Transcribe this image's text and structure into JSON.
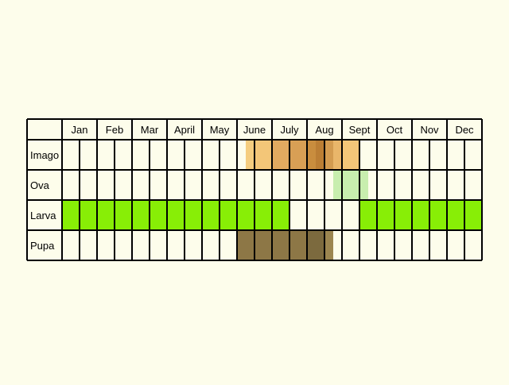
{
  "chart_data": {
    "type": "table",
    "title": "",
    "months": [
      "Jan",
      "Feb",
      "Mar",
      "April",
      "May",
      "June",
      "July",
      "Aug",
      "Sept",
      "Oct",
      "Nov",
      "Dec"
    ],
    "stages": [
      {
        "key": "imago",
        "label": "Imago",
        "spans": [
          {
            "start": 5.25,
            "end": 5.5,
            "color": "#f5cd7f"
          },
          {
            "start": 5.5,
            "end": 6.0,
            "color": "#f3c678"
          },
          {
            "start": 6.0,
            "end": 6.5,
            "color": "#e2aa60"
          },
          {
            "start": 6.5,
            "end": 7.0,
            "color": "#d89f55"
          },
          {
            "start": 7.0,
            "end": 7.25,
            "color": "#c98d3e"
          },
          {
            "start": 7.25,
            "end": 7.5,
            "color": "#bb7e34"
          },
          {
            "start": 7.5,
            "end": 7.75,
            "color": "#d39b50"
          },
          {
            "start": 7.75,
            "end": 8.0,
            "color": "#e9b66a"
          },
          {
            "start": 8.0,
            "end": 8.5,
            "color": "#f3c678"
          }
        ]
      },
      {
        "key": "ova",
        "label": "Ova",
        "spans": [
          {
            "start": 7.75,
            "end": 8.75,
            "color": "#c8eeae"
          }
        ]
      },
      {
        "key": "larva",
        "label": "Larva",
        "spans": [
          {
            "start": 0.0,
            "end": 6.5,
            "color": "#88ee06"
          },
          {
            "start": 8.5,
            "end": 12.0,
            "color": "#88ee06"
          }
        ]
      },
      {
        "key": "pupa",
        "label": "Pupa",
        "spans": [
          {
            "start": 5.0,
            "end": 7.0,
            "color": "#8d7746"
          },
          {
            "start": 7.0,
            "end": 7.5,
            "color": "#7c6a3e"
          },
          {
            "start": 7.5,
            "end": 7.75,
            "color": "#9c8650"
          }
        ]
      }
    ],
    "grid": true,
    "legend": "none"
  }
}
